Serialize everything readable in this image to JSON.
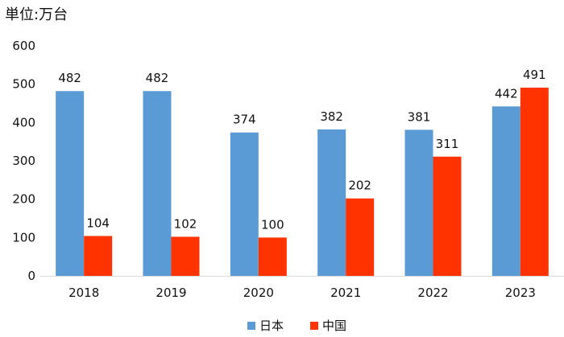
{
  "unit_label": "単位:万台",
  "chart_data": {
    "type": "bar",
    "categories": [
      "2018",
      "2019",
      "2020",
      "2021",
      "2022",
      "2023"
    ],
    "series": [
      {
        "name": "日本",
        "color": "#5B9BD5",
        "values": [
          482,
          482,
          374,
          382,
          381,
          442
        ]
      },
      {
        "name": "中国",
        "color": "#FF3300",
        "values": [
          104,
          102,
          100,
          202,
          311,
          491
        ]
      }
    ],
    "yticks": [
      0,
      100,
      200,
      300,
      400,
      500,
      600
    ],
    "ylim": [
      0,
      600
    ],
    "grid": false,
    "legend_position": "bottom"
  }
}
